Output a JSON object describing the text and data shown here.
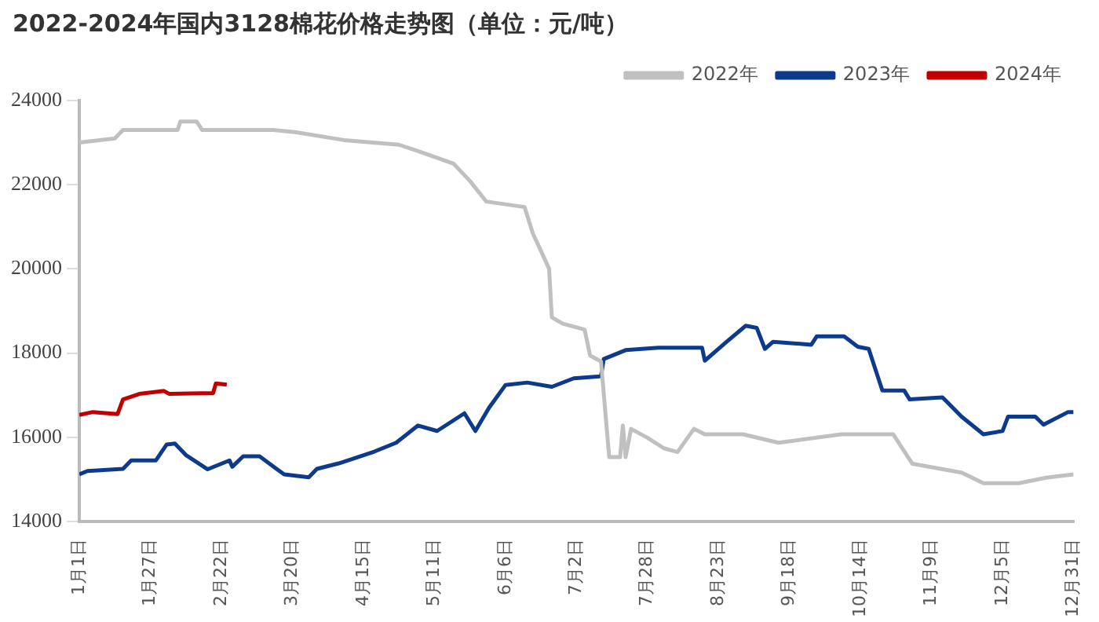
{
  "chart_data": {
    "type": "line",
    "title": "2022-2024年国内3128棉花价格走势图（单位：元/吨）",
    "legend": "top right",
    "marker": "none",
    "xlim": [
      "--01-01",
      "--12-31"
    ],
    "xticks": [
      {
        "value": "--01-01",
        "label": "1月1日"
      },
      {
        "value": "--01-27",
        "label": "1月27日"
      },
      {
        "value": "--02-22",
        "label": "2月22日"
      },
      {
        "value": "--03-20",
        "label": "3月20日"
      },
      {
        "value": "--04-15",
        "label": "4月15日"
      },
      {
        "value": "--05-11",
        "label": "5月11日"
      },
      {
        "value": "--06-06",
        "label": "6月6日"
      },
      {
        "value": "--07-02",
        "label": "7月2日"
      },
      {
        "value": "--07-28",
        "label": "7月28日"
      },
      {
        "value": "--08-23",
        "label": "8月23日"
      },
      {
        "value": "--09-18",
        "label": "9月18日"
      },
      {
        "value": "--10-14",
        "label": "10月14日"
      },
      {
        "value": "--11-09",
        "label": "11月9日"
      },
      {
        "value": "--12-05",
        "label": "12月5日"
      },
      {
        "value": "--12-31",
        "label": "12月31日"
      }
    ],
    "ylim": [
      14000,
      24000
    ],
    "yticks": [
      14000,
      16000,
      18000,
      20000,
      22000,
      24000
    ],
    "series": [
      {
        "name": "2022年",
        "color": "#c0c0c0",
        "x": [
          "--01-01",
          "--01-14",
          "--01-17",
          "--02-06",
          "--02-07",
          "--02-13",
          "--02-15",
          "--03-13",
          "--03-21",
          "--04-08",
          "--04-28",
          "--05-05",
          "--05-18",
          "--05-24",
          "--05-30",
          "--06-13",
          "--06-16",
          "--06-19",
          "--06-22",
          "--06-23",
          "--06-27",
          "--07-05",
          "--07-07",
          "--07-11",
          "--07-13",
          "--07-14",
          "--07-18",
          "--07-19",
          "--07-20",
          "--07-22",
          "--07-28",
          "--08-03",
          "--08-08",
          "--08-14",
          "--08-18",
          "--09-01",
          "--09-14",
          "--10-07",
          "--10-26",
          "--11-02",
          "--11-20",
          "--11-28",
          "--12-11",
          "--12-21",
          "--12-31"
        ],
        "values": [
          23000,
          23100,
          23300,
          23300,
          23500,
          23500,
          23300,
          23300,
          23250,
          23060,
          22950,
          22800,
          22500,
          22090,
          21600,
          21470,
          20850,
          20430,
          20000,
          18850,
          18700,
          18560,
          17940,
          17800,
          16280,
          15530,
          15530,
          16280,
          15530,
          16200,
          15990,
          15740,
          15650,
          16200,
          16070,
          16070,
          15870,
          16070,
          16070,
          15370,
          15160,
          14910,
          14910,
          15040,
          15120
        ]
      },
      {
        "name": "2023年",
        "color": "#0d3a8c",
        "x": [
          "--01-01",
          "--01-04",
          "--01-17",
          "--01-20",
          "--01-29",
          "--02-02",
          "--02-05",
          "--02-09",
          "--02-17",
          "--02-25",
          "--02-26",
          "--03-02",
          "--03-08",
          "--03-14",
          "--03-17",
          "--03-26",
          "--03-29",
          "--04-06",
          "--04-19",
          "--04-27",
          "--05-05",
          "--05-12",
          "--05-22",
          "--05-26",
          "--05-31",
          "--06-06",
          "--06-14",
          "--06-23",
          "--07-01",
          "--07-11",
          "--07-12",
          "--07-20",
          "--08-01",
          "--08-17",
          "--08-18",
          "--08-26",
          "--09-02",
          "--09-06",
          "--09-09",
          "--09-12",
          "--09-26",
          "--09-28",
          "--10-08",
          "--10-13",
          "--10-17",
          "--10-22",
          "--10-30",
          "--11-01",
          "--11-13",
          "--11-20",
          "--11-28",
          "--12-05",
          "--12-07",
          "--12-17",
          "--12-20",
          "--12-29",
          "--12-31"
        ],
        "values": [
          15120,
          15200,
          15250,
          15450,
          15450,
          15830,
          15850,
          15580,
          15240,
          15450,
          15300,
          15550,
          15550,
          15260,
          15120,
          15050,
          15250,
          15380,
          15660,
          15870,
          16280,
          16150,
          16570,
          16150,
          16700,
          17240,
          17300,
          17200,
          17400,
          17450,
          17860,
          18070,
          18130,
          18130,
          17820,
          18270,
          18650,
          18600,
          18100,
          18270,
          18200,
          18400,
          18400,
          18150,
          18100,
          17110,
          17110,
          16900,
          16950,
          16490,
          16070,
          16150,
          16490,
          16490,
          16300,
          16600,
          16600
        ]
      },
      {
        "name": "2024年",
        "color": "#c00000",
        "x": [
          "--01-01",
          "--01-06",
          "--01-15",
          "--01-17",
          "--01-23",
          "--02-01",
          "--02-03",
          "--02-19",
          "--02-20",
          "--02-24"
        ],
        "values": [
          16530,
          16600,
          16550,
          16900,
          17030,
          17100,
          17030,
          17050,
          17280,
          17250
        ]
      }
    ]
  }
}
